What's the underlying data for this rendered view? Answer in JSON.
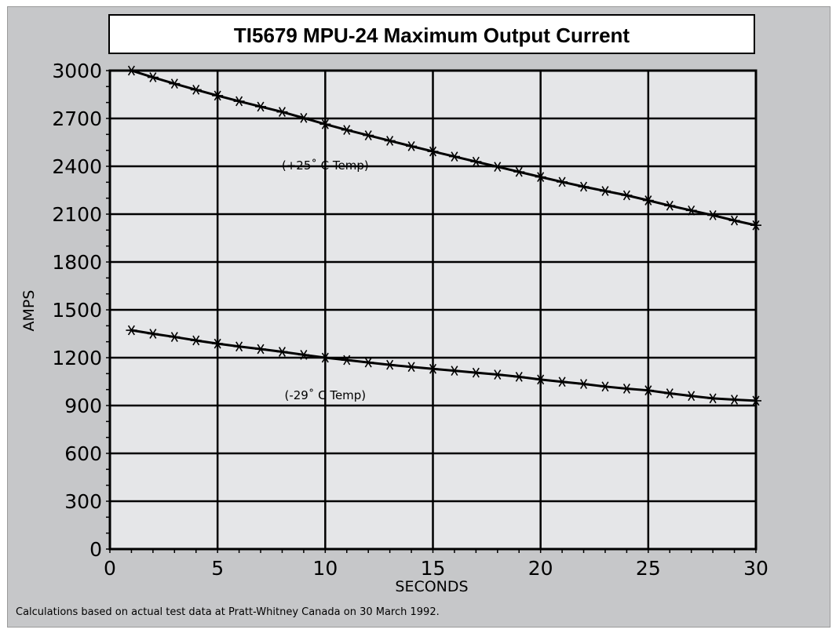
{
  "chart_data": {
    "type": "line",
    "title": "TI5679 MPU-24 Maximum Output Current",
    "xlabel": "SECONDS",
    "ylabel": "AMPS",
    "xlim": [
      0,
      30
    ],
    "ylim": [
      0,
      3000
    ],
    "x_ticks": [
      0,
      5,
      10,
      15,
      20,
      25,
      30
    ],
    "y_ticks": [
      0,
      300,
      600,
      900,
      1200,
      1500,
      1800,
      2100,
      2400,
      2700,
      3000
    ],
    "grid": true,
    "marker": "asterisk",
    "x": [
      1,
      2,
      3,
      4,
      5,
      6,
      7,
      8,
      9,
      10,
      11,
      12,
      13,
      14,
      15,
      16,
      17,
      18,
      19,
      20,
      21,
      22,
      23,
      24,
      25,
      26,
      27,
      28,
      29,
      30
    ],
    "series": [
      {
        "values": [
          3000,
          2958,
          2918,
          2880,
          2843,
          2808,
          2774,
          2741,
          2703,
          2664,
          2628,
          2594,
          2560,
          2526,
          2493,
          2461,
          2429,
          2397,
          2365,
          2333,
          2302,
          2272,
          2245,
          2218,
          2186,
          2153,
          2123,
          2093,
          2060,
          2030
        ]
      },
      {
        "values": [
          1372,
          1350,
          1330,
          1308,
          1288,
          1270,
          1254,
          1237,
          1218,
          1200,
          1185,
          1170,
          1155,
          1142,
          1130,
          1118,
          1106,
          1094,
          1080,
          1063,
          1049,
          1035,
          1019,
          1006,
          995,
          976,
          960,
          945,
          937,
          930
        ]
      }
    ],
    "annotations": [
      {
        "text": "(+25˚ C Temp)",
        "x": 10,
        "y": 2380
      },
      {
        "text": "(-29˚ C Temp)",
        "x": 10,
        "y": 940
      }
    ],
    "footnote": "Calculations based on actual test data at Pratt-Whitney Canada on 30 March 1992.",
    "colors": {
      "background": "#c6c7c9",
      "plot_area": "#e5e6e8",
      "grid": "#000000",
      "line": "#000000",
      "title_box": "#ffffff"
    }
  }
}
